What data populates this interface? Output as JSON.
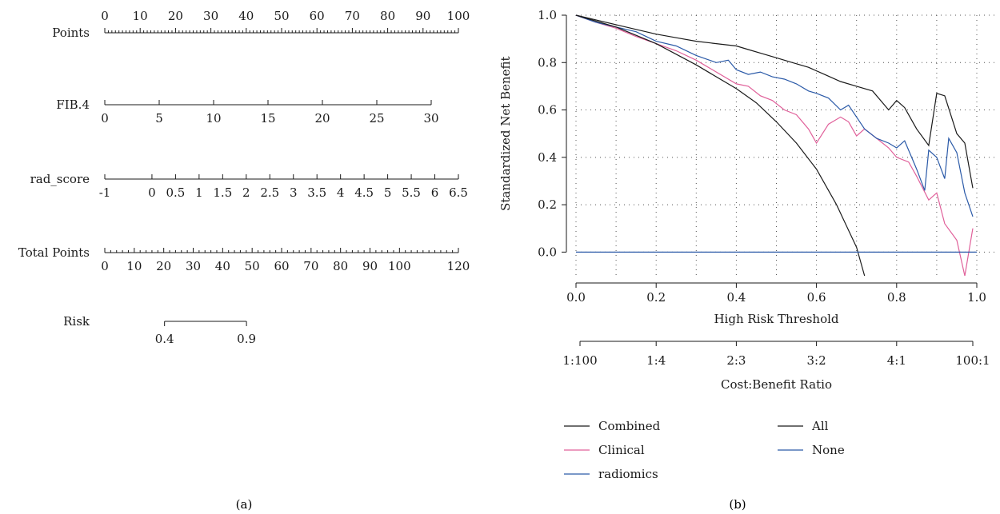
{
  "panel_labels": {
    "a": "(a)",
    "b": "(b)"
  },
  "colors": {
    "ink": "#1a1a1a",
    "combined": "#1a1a1a",
    "clinical": "#e0609a",
    "radiomics": "#2b5aa8",
    "all": "#1a1a1a",
    "none": "#2b5aa8"
  },
  "chart_data": [
    {
      "type": "nomogram",
      "rows": [
        {
          "label": "Points",
          "kind": "scale",
          "range": [
            0,
            100
          ],
          "ticks": [
            0,
            10,
            20,
            30,
            40,
            50,
            60,
            70,
            80,
            90,
            100
          ],
          "tick_labels": [
            "0",
            "10",
            "20",
            "30",
            "40",
            "50",
            "60",
            "70",
            "80",
            "90",
            "100"
          ],
          "minor_step": 1
        },
        {
          "label": "FIB.4",
          "kind": "variable",
          "range": [
            0,
            30
          ],
          "ticks": [
            0,
            5,
            10,
            15,
            20,
            25,
            30
          ],
          "tick_labels": [
            "0",
            "5",
            "10",
            "15",
            "20",
            "25",
            "30"
          ]
        },
        {
          "label": "rad_score",
          "kind": "variable",
          "range": [
            -1,
            6.5
          ],
          "ticks": [
            -1,
            0,
            0.5,
            1,
            1.5,
            2,
            2.5,
            3,
            3.5,
            4,
            4.5,
            5,
            5.5,
            6,
            6.5
          ],
          "tick_labels": [
            "-1",
            "0",
            "0.5",
            "1",
            "1.5",
            "2",
            "2.5",
            "3",
            "3.5",
            "4",
            "4.5",
            "5",
            "5.5",
            "6",
            "6.5"
          ]
        },
        {
          "label": "Total Points",
          "kind": "scale",
          "range": [
            0,
            120
          ],
          "ticks": [
            0,
            10,
            20,
            30,
            40,
            50,
            60,
            70,
            80,
            90,
            100,
            120
          ],
          "tick_labels": [
            "0",
            "10",
            "20",
            "30",
            "40",
            "50",
            "60",
            "70",
            "80",
            "90",
            "100",
            "120"
          ],
          "minor_step": 2
        },
        {
          "label": "Risk",
          "kind": "risk",
          "range": [
            0.4,
            0.9
          ],
          "total_points_range": [
            20,
            47
          ],
          "ticks": [
            0.4,
            0.9
          ],
          "tick_labels": [
            "0.4",
            "0.9"
          ]
        }
      ]
    },
    {
      "type": "line",
      "xlabel": "High Risk Threshold",
      "ylabel": "Standardized Net Benefit",
      "xlim": [
        0,
        1
      ],
      "ylim": [
        -0.1,
        1.0
      ],
      "x_ticks": [
        0,
        0.2,
        0.4,
        0.6,
        0.8,
        1.0
      ],
      "x_tick_labels": [
        "0.0",
        "0.2",
        "0.4",
        "0.6",
        "0.8",
        "1.0"
      ],
      "y_ticks": [
        0,
        0.2,
        0.4,
        0.6,
        0.8,
        1.0
      ],
      "y_tick_labels": [
        "0.0",
        "0.2",
        "0.4",
        "0.6",
        "0.8",
        "1.0"
      ],
      "grid": true,
      "secondary_axis": {
        "label": "Cost:Benefit Ratio",
        "ticks": [
          0.01,
          0.2,
          0.4,
          0.6,
          0.8,
          0.99
        ],
        "tick_labels": [
          "1:100",
          "1:4",
          "2:3",
          "3:2",
          "4:1",
          "100:1"
        ]
      },
      "legend_position": "bottom",
      "series": [
        {
          "name": "Combined",
          "color_key": "combined",
          "x": [
            0,
            0.05,
            0.1,
            0.15,
            0.2,
            0.25,
            0.3,
            0.35,
            0.4,
            0.43,
            0.46,
            0.5,
            0.54,
            0.58,
            0.62,
            0.66,
            0.7,
            0.74,
            0.78,
            0.8,
            0.82,
            0.85,
            0.88,
            0.9,
            0.92,
            0.95,
            0.97,
            0.99
          ],
          "y": [
            1.0,
            0.98,
            0.96,
            0.94,
            0.92,
            0.905,
            0.89,
            0.88,
            0.87,
            0.855,
            0.84,
            0.82,
            0.8,
            0.78,
            0.75,
            0.72,
            0.7,
            0.68,
            0.6,
            0.64,
            0.61,
            0.52,
            0.45,
            0.67,
            0.66,
            0.5,
            0.46,
            0.27
          ]
        },
        {
          "name": "Clinical",
          "color_key": "clinical",
          "x": [
            0,
            0.05,
            0.1,
            0.15,
            0.2,
            0.25,
            0.3,
            0.35,
            0.4,
            0.43,
            0.46,
            0.49,
            0.52,
            0.55,
            0.58,
            0.6,
            0.63,
            0.66,
            0.68,
            0.7,
            0.72,
            0.75,
            0.78,
            0.8,
            0.83,
            0.85,
            0.88,
            0.9,
            0.92,
            0.95,
            0.97,
            0.99
          ],
          "y": [
            1.0,
            0.97,
            0.945,
            0.91,
            0.88,
            0.85,
            0.81,
            0.76,
            0.71,
            0.7,
            0.66,
            0.64,
            0.6,
            0.58,
            0.52,
            0.46,
            0.54,
            0.57,
            0.55,
            0.49,
            0.52,
            0.48,
            0.44,
            0.4,
            0.38,
            0.32,
            0.22,
            0.25,
            0.12,
            0.05,
            -0.1,
            0.1
          ]
        },
        {
          "name": "radiomics",
          "color_key": "radiomics",
          "x": [
            0,
            0.05,
            0.1,
            0.15,
            0.2,
            0.25,
            0.3,
            0.35,
            0.38,
            0.4,
            0.43,
            0.46,
            0.49,
            0.52,
            0.55,
            0.58,
            0.6,
            0.63,
            0.66,
            0.68,
            0.7,
            0.72,
            0.75,
            0.78,
            0.8,
            0.82,
            0.85,
            0.87,
            0.88,
            0.9,
            0.92,
            0.93,
            0.95,
            0.97,
            0.99
          ],
          "y": [
            1.0,
            0.97,
            0.95,
            0.93,
            0.89,
            0.87,
            0.83,
            0.8,
            0.81,
            0.77,
            0.75,
            0.76,
            0.74,
            0.73,
            0.71,
            0.68,
            0.67,
            0.65,
            0.6,
            0.62,
            0.57,
            0.52,
            0.48,
            0.46,
            0.44,
            0.47,
            0.35,
            0.26,
            0.43,
            0.4,
            0.31,
            0.48,
            0.42,
            0.25,
            0.15
          ]
        },
        {
          "name": "All",
          "color_key": "all",
          "x": [
            0,
            0.1,
            0.2,
            0.3,
            0.4,
            0.45,
            0.5,
            0.55,
            0.6,
            0.65,
            0.7,
            0.72
          ],
          "y": [
            1.0,
            0.95,
            0.88,
            0.79,
            0.69,
            0.63,
            0.55,
            0.46,
            0.35,
            0.2,
            0.02,
            -0.1
          ]
        },
        {
          "name": "None",
          "color_key": "none",
          "x": [
            0,
            1.0
          ],
          "y": [
            0,
            0
          ]
        }
      ],
      "legend": [
        "Combined",
        "Clinical",
        "radiomics",
        "All",
        "None"
      ]
    }
  ]
}
